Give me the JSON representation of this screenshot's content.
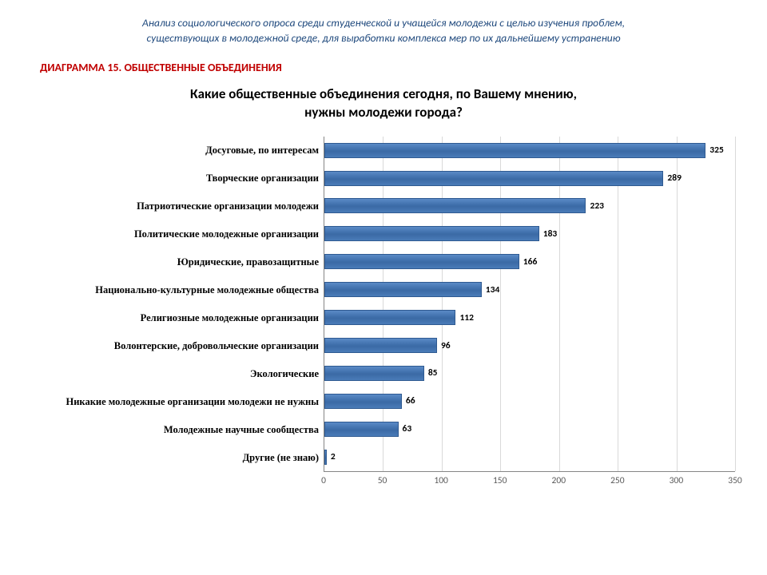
{
  "header": {
    "line1": "Анализ социологического опроса среди студенческой и учащейся молодежи с целью изучения проблем,",
    "line2": "существующих в молодежной среде, для выработки комплекса мер по их дальнейшему устранению"
  },
  "diagram_label": "ДИАГРАММА 15. ОБЩЕСТВЕННЫЕ ОБЪЕДИНЕНИЯ",
  "chart": {
    "type": "bar-horizontal",
    "title_line1": "Какие общественные объединения сегодня, по Вашему мнению,",
    "title_line2": "нужны молодежи города?",
    "xlim": [
      0,
      350
    ],
    "xtick_step": 50,
    "xticks": [
      0,
      50,
      100,
      150,
      200,
      250,
      300,
      350
    ],
    "bar_fill": "#4a7bb8",
    "bar_border": "#2f5a91",
    "grid_color": "#d9d9d9",
    "axis_color": "#868686",
    "background_color": "#ffffff",
    "value_label_color": "#000000",
    "value_label_fontsize": 11.5,
    "value_label_fontweight": "bold",
    "ylabel_font": "Times New Roman",
    "ylabel_fontweight": "bold",
    "ylabel_fontsize": 12.5,
    "items": [
      {
        "label": "Досуговые, по интересам",
        "value": 325
      },
      {
        "label": "Творческие организации",
        "value": 289
      },
      {
        "label": "Патриотические организации молодежи",
        "value": 223
      },
      {
        "label": "Политические молодежные организации",
        "value": 183
      },
      {
        "label": "Юридические, правозащитные",
        "value": 166
      },
      {
        "label": "Национально-культурные молодежные общества",
        "value": 134
      },
      {
        "label": "Религиозные молодежные организации",
        "value": 112
      },
      {
        "label": "Волонтерские, добровольческие организации",
        "value": 96
      },
      {
        "label": "Экологические",
        "value": 85
      },
      {
        "label": "Никакие молодежные организации молодежи не нужны",
        "value": 66
      },
      {
        "label": "Молодежные научные сообщества",
        "value": 63
      },
      {
        "label": "Другие (не знаю)",
        "value": 2
      }
    ]
  }
}
